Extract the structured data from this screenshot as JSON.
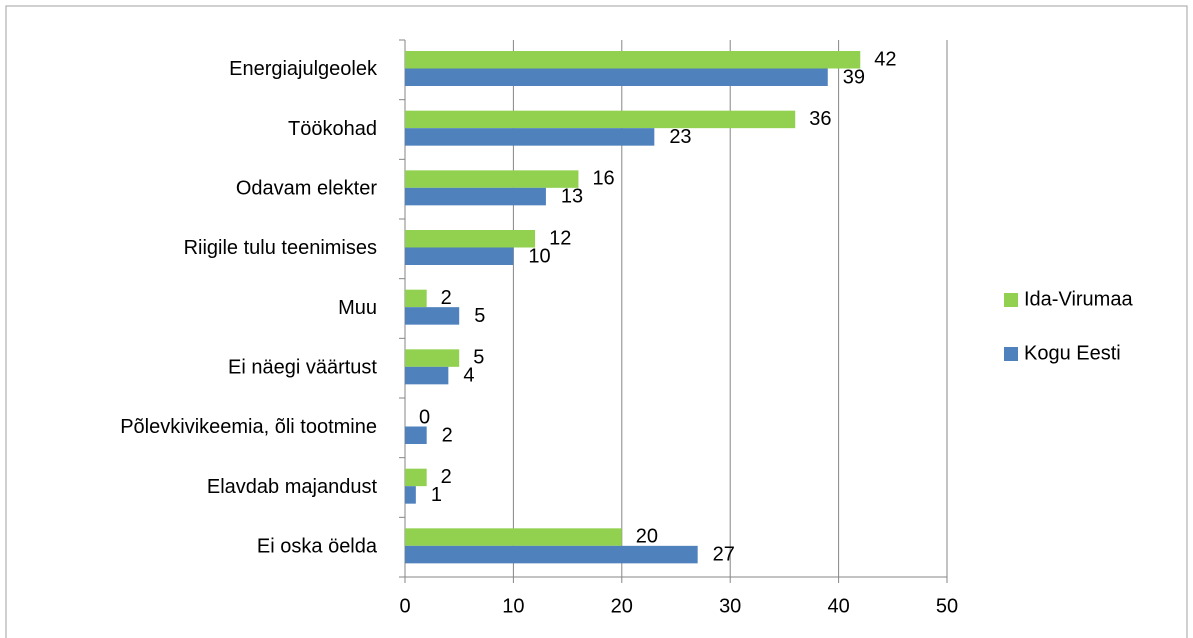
{
  "chart_data": {
    "type": "bar",
    "orientation": "horizontal",
    "categories": [
      "Energiajulgeolek",
      "Töökohad",
      "Odavam elekter",
      "Riigile tulu teenimises",
      "Muu",
      "Ei näegi väärtust",
      "Põlevkivikeemia, õli tootmine",
      "Elavdab majandust",
      "Ei oska öelda"
    ],
    "series": [
      {
        "name": "Ida-Virumaa",
        "color": "#92d050",
        "values": [
          42,
          36,
          16,
          12,
          2,
          5,
          0,
          2,
          20
        ]
      },
      {
        "name": "Kogu Eesti",
        "color": "#4f81bd",
        "values": [
          39,
          23,
          13,
          10,
          5,
          4,
          2,
          1,
          27
        ]
      }
    ],
    "xlim": [
      0,
      50
    ],
    "xticks": [
      0,
      10,
      20,
      30,
      40,
      50
    ],
    "grid": true,
    "legend": "right"
  }
}
